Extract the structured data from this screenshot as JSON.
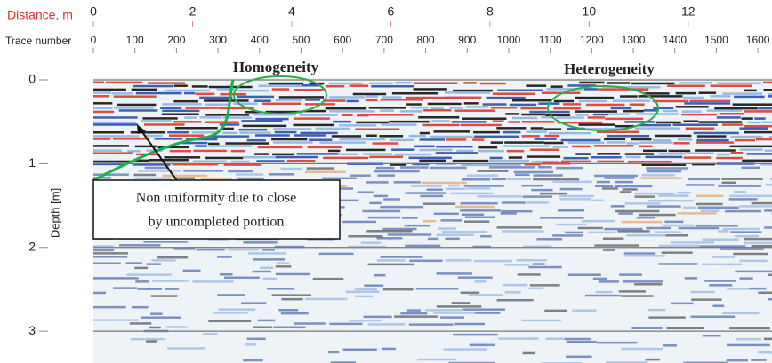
{
  "chart_data": {
    "type": "radargram",
    "x2label": "Distance, m",
    "xlabel": "Trace number",
    "ylabel": "Depth [m]",
    "x2lim": [
      0,
      13.69
    ],
    "x2ticks": [
      0,
      2,
      4,
      6,
      8,
      10,
      12
    ],
    "xlim": [
      0,
      1634
    ],
    "xticks": [
      0,
      100,
      200,
      300,
      400,
      500,
      600,
      700,
      800,
      900,
      1000,
      1100,
      1200,
      1300,
      1400,
      1500,
      1600
    ],
    "ylim": [
      0,
      3.38
    ],
    "yticks": [
      0,
      1,
      2,
      3
    ],
    "grid": true,
    "annotations": {
      "left_heading": "Homogeneity",
      "right_heading": "Heterogeneity",
      "note": [
        "Non uniformity due to close",
        "by uncompleted portion"
      ]
    }
  }
}
